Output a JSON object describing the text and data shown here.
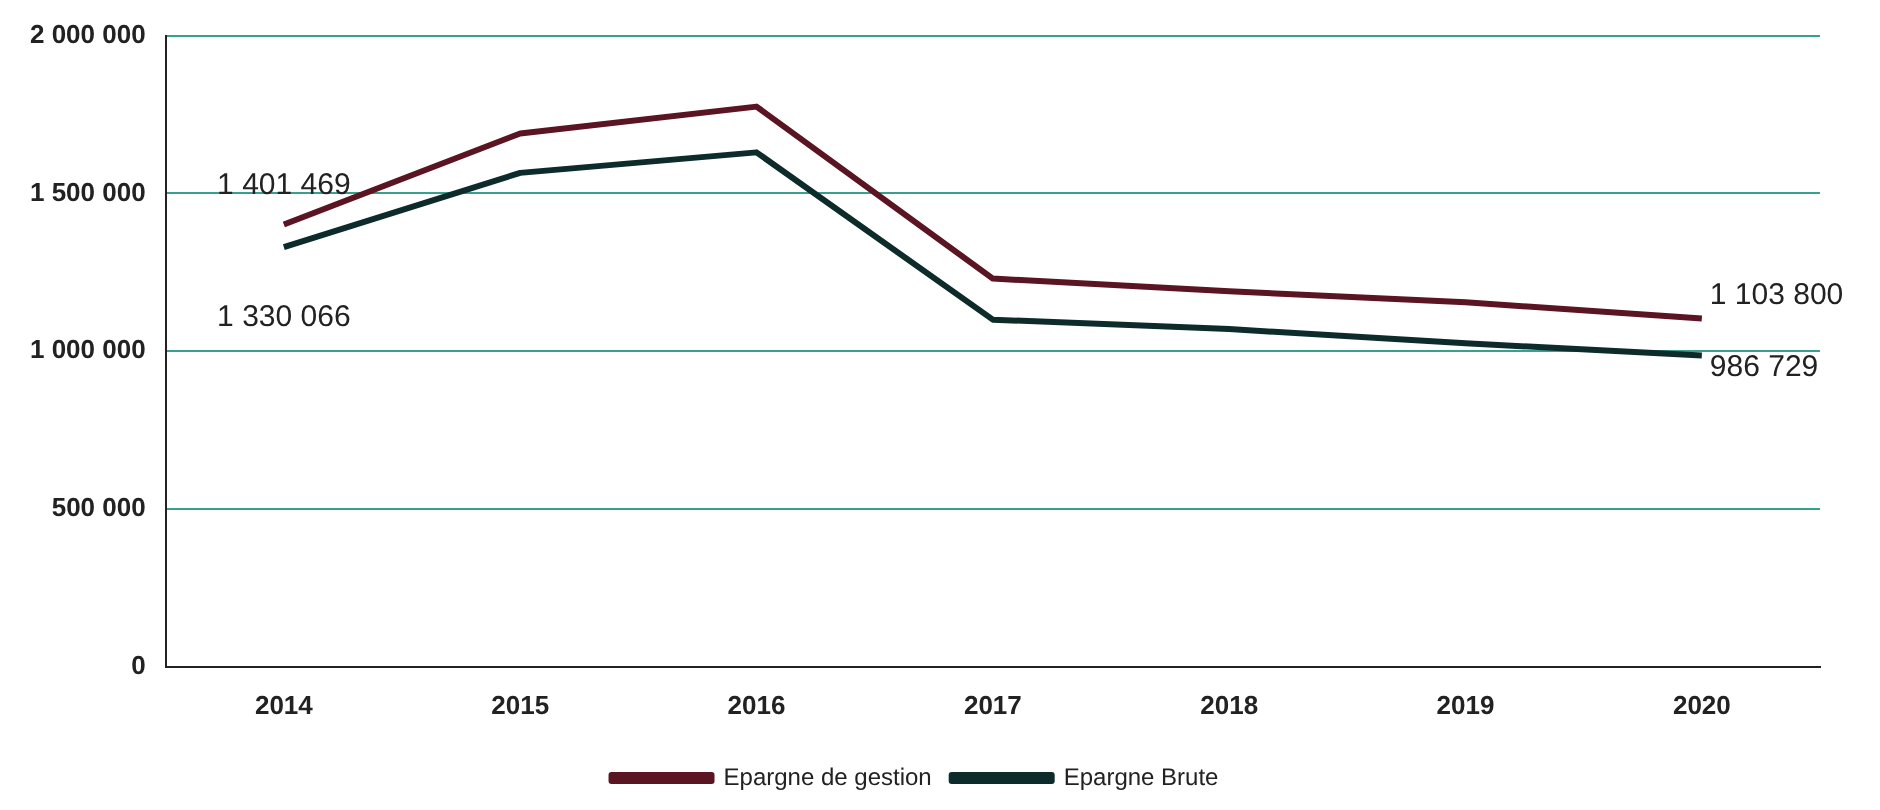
{
  "chart_data": {
    "type": "line",
    "categories": [
      "2014",
      "2015",
      "2016",
      "2017",
      "2018",
      "2019",
      "2020"
    ],
    "series": [
      {
        "name": "Epargne de gestion",
        "color": "#5a1422",
        "values": [
          1401469,
          1690000,
          1775000,
          1230000,
          1190000,
          1155000,
          1103800
        ],
        "value_labels": [
          "1 401 469",
          null,
          null,
          null,
          null,
          null,
          "1 103 800"
        ]
      },
      {
        "name": "Epargne Brute",
        "color": "#0d2b2b",
        "values": [
          1330066,
          1565000,
          1630000,
          1100000,
          1070000,
          1025000,
          986729
        ],
        "value_labels": [
          "1 330 066",
          null,
          null,
          null,
          null,
          null,
          "986 729"
        ]
      }
    ],
    "ylim": [
      0,
      2000000
    ],
    "yticks": [
      {
        "value": 0,
        "label": "0"
      },
      {
        "value": 500000,
        "label": "500 000"
      },
      {
        "value": 1000000,
        "label": "1 000 000"
      },
      {
        "value": 1500000,
        "label": "1 500 000"
      },
      {
        "value": 2000000,
        "label": "2 000 000"
      }
    ],
    "grid": "y",
    "legend": "bottom",
    "marker": "none",
    "line_style": "solid"
  }
}
